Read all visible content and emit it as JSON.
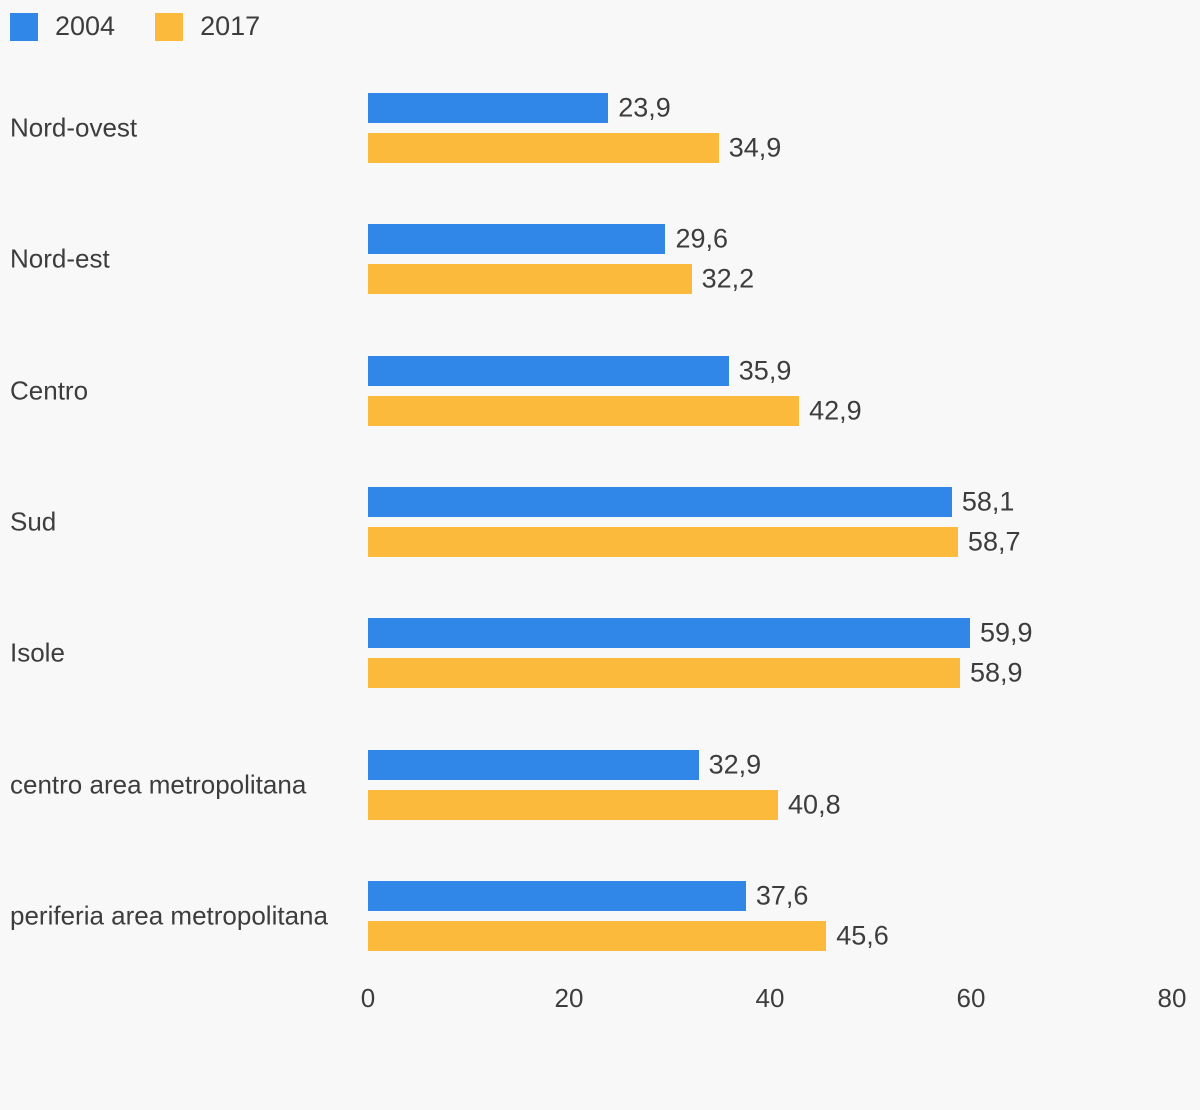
{
  "colors": {
    "background": "#f8f8f9",
    "text": "#3d3d3d",
    "series_2004": "#3187e8",
    "series_2017": "#fcba3d"
  },
  "legend": {
    "position": "top-left",
    "items": [
      {
        "label": "2004",
        "color": "#3187e8"
      },
      {
        "label": "2017",
        "color": "#fcba3d"
      }
    ]
  },
  "chart_data": {
    "type": "bar",
    "orientation": "horizontal",
    "title": "",
    "xlabel": "",
    "ylabel": "",
    "categories": [
      "Nord-ovest",
      "Nord-est",
      "Centro",
      "Sud",
      "Isole",
      "centro area metropolitana",
      "periferia area metropolitana"
    ],
    "series": [
      {
        "name": "2004",
        "color": "#3187e8",
        "values": [
          23.9,
          29.6,
          35.9,
          58.1,
          59.9,
          32.9,
          37.6
        ],
        "value_labels": [
          "23,9",
          "29,6",
          "35,9",
          "58,1",
          "59,9",
          "32,9",
          "37,6"
        ]
      },
      {
        "name": "2017",
        "color": "#fcba3d",
        "values": [
          34.9,
          32.2,
          42.9,
          58.7,
          58.9,
          40.8,
          45.6
        ],
        "value_labels": [
          "34,9",
          "32,2",
          "42,9",
          "58,7",
          "58,9",
          "40,8",
          "45,6"
        ]
      }
    ],
    "xlim": [
      0,
      80
    ],
    "xticks": [
      0,
      20,
      40,
      60,
      80
    ],
    "xtick_labels": [
      "0",
      "20",
      "40",
      "60",
      "80"
    ],
    "grid": false,
    "legend_position": "top-left"
  }
}
